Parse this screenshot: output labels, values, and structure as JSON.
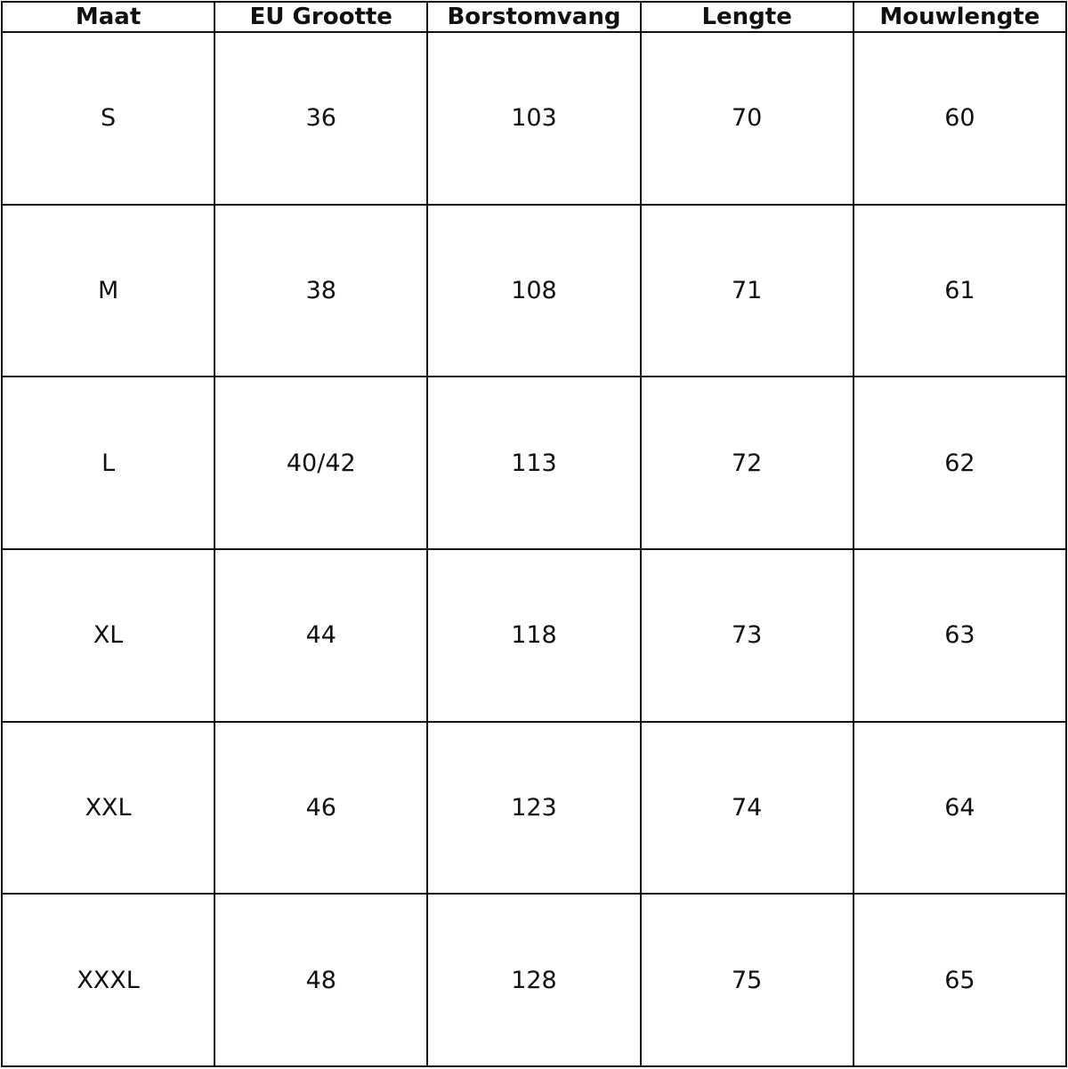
{
  "table": {
    "header": [
      "Maat",
      "EU Grootte",
      "Borstomvang",
      "Lengte",
      "Mouwlengte"
    ],
    "rows": [
      [
        "S",
        "36",
        "103",
        "70",
        "60"
      ],
      [
        "M",
        "38",
        "108",
        "71",
        "61"
      ],
      [
        "L",
        "40/42",
        "113",
        "72",
        "62"
      ],
      [
        "XL",
        "44",
        "118",
        "73",
        "63"
      ],
      [
        "XXL",
        "46",
        "123",
        "74",
        "64"
      ],
      [
        "XXXL",
        "48",
        "128",
        "75",
        "65"
      ]
    ]
  }
}
